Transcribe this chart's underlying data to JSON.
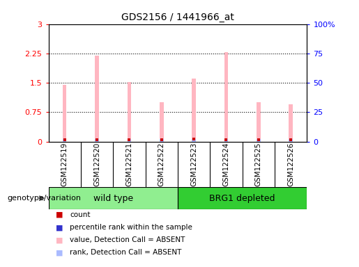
{
  "title": "GDS2156 / 1441966_at",
  "samples": [
    "GSM122519",
    "GSM122520",
    "GSM122521",
    "GSM122522",
    "GSM122523",
    "GSM122524",
    "GSM122525",
    "GSM122526"
  ],
  "pink_values": [
    1.45,
    2.2,
    1.52,
    1.0,
    1.6,
    2.28,
    1.0,
    0.95
  ],
  "blue_bar_values": [
    0.07,
    0.07,
    0.07,
    0.07,
    0.07,
    0.07,
    0.07,
    0.07
  ],
  "red_dot_values": [
    0.04,
    0.04,
    0.04,
    0.04,
    0.06,
    0.04,
    0.04,
    0.04
  ],
  "blue_dot_values": [
    0.09,
    0.09,
    0.09,
    0.09,
    0.09,
    0.09,
    0.09,
    0.09
  ],
  "left_ylim": [
    0,
    3
  ],
  "right_ylim": [
    0,
    100
  ],
  "left_yticks": [
    0,
    0.75,
    1.5,
    2.25,
    3
  ],
  "right_yticks": [
    0,
    25,
    50,
    75,
    100
  ],
  "left_ytick_labels": [
    "0",
    "0.75",
    "1.5",
    "2.25",
    "3"
  ],
  "right_ytick_labels": [
    "0",
    "25",
    "50",
    "75",
    "100%"
  ],
  "group1_label": "wild type",
  "group2_label": "BRG1 depleted",
  "group1_color": "#90EE90",
  "group2_color": "#32CD32",
  "bar_bg_color": "#D3D3D3",
  "pink_bar_color": "#FFB6C1",
  "blue_bar_color": "#AABBFF",
  "red_dot_color": "#CC0000",
  "blue_dot_color": "#3333CC",
  "genotype_label": "genotype/variation",
  "figsize": [
    5.15,
    3.84
  ],
  "dpi": 100
}
